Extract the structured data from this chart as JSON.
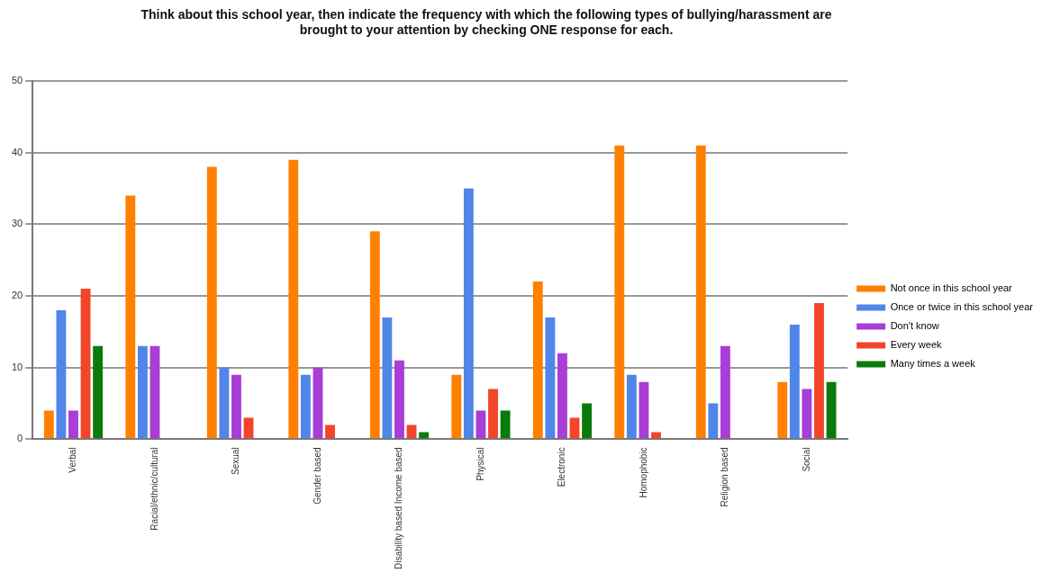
{
  "chart_data": {
    "type": "bar",
    "title": "Think about this school year, then indicate the frequency with which the following types of bullying/harassment are brought to your attention by checking ONE response for each.",
    "categories": [
      "Verbal",
      "Racial/ethnic/cultural",
      "Sexual",
      "Gender based",
      "Disability based Income based",
      "Physical",
      "Electronic",
      "Homophobic",
      "Religion based",
      "Social"
    ],
    "series": [
      {
        "name": "Not once in this school year",
        "color": "#ff8000",
        "values": [
          4,
          34,
          38,
          39,
          29,
          9,
          22,
          41,
          41,
          8
        ]
      },
      {
        "name": "Once or twice in this school year",
        "color": "#4f86e8",
        "values": [
          18,
          13,
          10,
          9,
          17,
          35,
          17,
          9,
          5,
          16
        ]
      },
      {
        "name": "Don't know",
        "color": "#a83ed6",
        "values": [
          4,
          13,
          9,
          10,
          11,
          4,
          12,
          8,
          13,
          7
        ]
      },
      {
        "name": "Every week",
        "color": "#f2452a",
        "values": [
          21,
          0,
          3,
          2,
          2,
          7,
          3,
          1,
          0,
          19
        ]
      },
      {
        "name": "Many times a week",
        "color": "#0a7a0a",
        "values": [
          13,
          0,
          0,
          0,
          1,
          4,
          5,
          0,
          0,
          8
        ]
      }
    ],
    "ylim": [
      0,
      50
    ],
    "yticks": [
      0,
      10,
      20,
      30,
      40,
      50
    ],
    "grid": "y",
    "legend": "right"
  }
}
